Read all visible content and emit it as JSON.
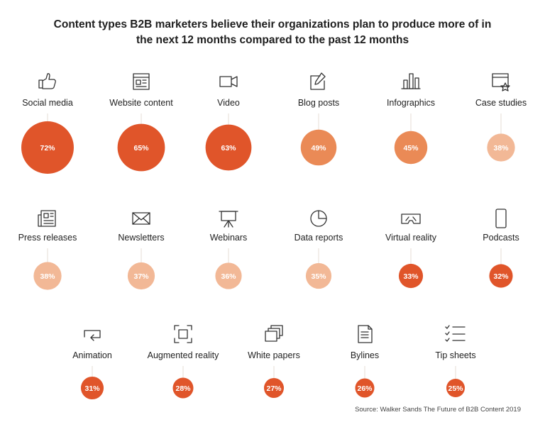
{
  "title_line1": "Content types B2B marketers believe their organizations plan to produce more of in",
  "title_line2": "the next 12 months compared to the past 12 months",
  "source": "Source: Walker Sands The Future of B2B Content 2019",
  "colors": {
    "high": "#e0552a",
    "mid": "#ea8a56",
    "low": "#f2b896",
    "stem": "#e6ddd6"
  },
  "chart_data": {
    "type": "bubble",
    "title": "Content types B2B marketers believe their organizations plan to produce more of in the next 12 months compared to the past 12 months",
    "unit": "%",
    "items": [
      {
        "label": "Social media",
        "value": 72,
        "icon": "thumbs-up-icon"
      },
      {
        "label": "Website content",
        "value": 65,
        "icon": "webpage-icon"
      },
      {
        "label": "Video",
        "value": 63,
        "icon": "video-camera-icon"
      },
      {
        "label": "Blog posts",
        "value": 49,
        "icon": "edit-icon"
      },
      {
        "label": "Infographics",
        "value": 45,
        "icon": "bar-chart-icon"
      },
      {
        "label": "Case studies",
        "value": 38,
        "icon": "browser-star-icon"
      },
      {
        "label": "Press releases",
        "value": 38,
        "icon": "newspaper-icon"
      },
      {
        "label": "Newsletters",
        "value": 37,
        "icon": "envelope-icon"
      },
      {
        "label": "Webinars",
        "value": 36,
        "icon": "presentation-icon"
      },
      {
        "label": "Data reports",
        "value": 35,
        "icon": "pie-chart-icon"
      },
      {
        "label": "Virtual reality",
        "value": 33,
        "icon": "vr-headset-icon"
      },
      {
        "label": "Podcasts",
        "value": 32,
        "icon": "smartphone-icon"
      },
      {
        "label": "Animation",
        "value": 31,
        "icon": "loop-arrow-icon"
      },
      {
        "label": "Augmented reality",
        "value": 28,
        "icon": "ar-frame-icon"
      },
      {
        "label": "White papers",
        "value": 27,
        "icon": "stacked-papers-icon"
      },
      {
        "label": "Bylines",
        "value": 26,
        "icon": "document-icon"
      },
      {
        "label": "Tip sheets",
        "value": 25,
        "icon": "checklist-icon"
      }
    ]
  }
}
